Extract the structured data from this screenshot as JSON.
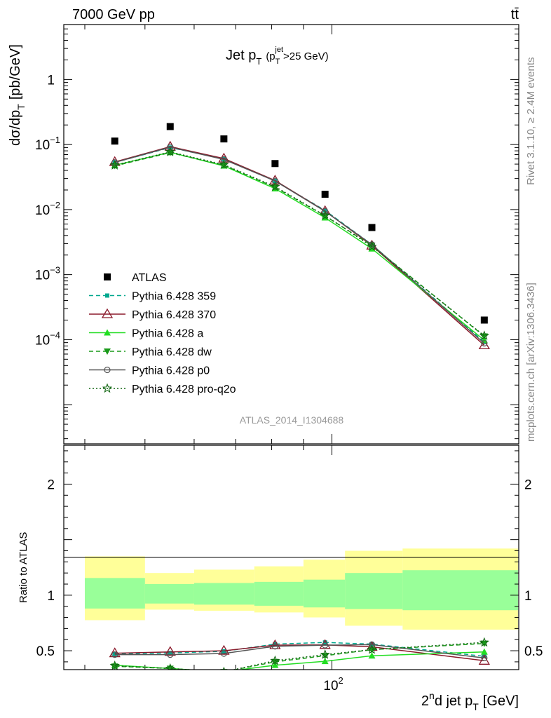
{
  "header": {
    "left": "7000 GeV pp",
    "right": "tt̄"
  },
  "side_labels": {
    "rivet": "Rivet 3.1.10, ≥ 2.4M events",
    "mcplots": "mcplots.cern.ch [arXiv:1306.3436]"
  },
  "analysis_id": "ATLAS_2014_I1304688",
  "chart_data": [
    {
      "type": "line",
      "panel": "main",
      "title": "Jet p_T (p_T^jet > 25 GeV)",
      "title_main": "Jet p",
      "title_sub": "T",
      "title_cut_pre": "(p",
      "title_cut_sub": "T",
      "title_cut_sup": "jet",
      "title_cut_post": ">25 GeV)",
      "ylabel": "dσ/dp_T [pb/GeV]",
      "ylabel_main": "dσ/dp",
      "ylabel_sub": "T",
      "ylabel_unit": "[pb/GeV]",
      "xlabel": "2^nd jet p_T [GeV]",
      "xscale": "log",
      "yscale": "log",
      "xlim": [
        37,
        200
      ],
      "ylim": [
        2.5e-06,
        7
      ],
      "y_tick_labels": [
        {
          "base": "10",
          "exp": "−4",
          "value": 0.0001
        },
        {
          "base": "10",
          "exp": "−3",
          "value": 0.001
        },
        {
          "base": "10",
          "exp": "−2",
          "value": 0.01
        },
        {
          "base": "10",
          "exp": "−1",
          "value": 0.1
        },
        {
          "base": "1",
          "exp": "",
          "value": 1
        }
      ],
      "legend_position": "lower-left",
      "series": [
        {
          "name": "ATLAS",
          "style": "data",
          "color": "#000000",
          "x": [
            44.7,
            54.9,
            67.0,
            81.0,
            97.5,
            116.0,
            176.0
          ],
          "y": [
            0.113,
            0.189,
            0.122,
            0.051,
            0.0172,
            0.0053,
            0.0002
          ]
        },
        {
          "name": "Pythia 6.428 359",
          "style": "dashed",
          "marker": "square",
          "color": "#00a88f",
          "x": [
            44.7,
            54.9,
            67.0,
            81.0,
            97.5,
            116.0,
            176.0
          ],
          "y": [
            0.053,
            0.09,
            0.06,
            0.0275,
            0.0097,
            0.0029,
            9.2e-05
          ]
        },
        {
          "name": "Pythia 6.428 370",
          "style": "solid",
          "marker": "triangle-open",
          "color": "#8b1a2b",
          "x": [
            44.7,
            54.9,
            67.0,
            81.0,
            97.5,
            116.0,
            176.0
          ],
          "y": [
            0.054,
            0.093,
            0.061,
            0.028,
            0.0095,
            0.0028,
            8.2e-05
          ]
        },
        {
          "name": "Pythia 6.428 a",
          "style": "solid",
          "marker": "triangle",
          "color": "#22dd22",
          "x": [
            44.7,
            54.9,
            67.0,
            81.0,
            97.5,
            116.0,
            176.0
          ],
          "y": [
            0.048,
            0.076,
            0.047,
            0.021,
            0.0075,
            0.0025,
            9.8e-05
          ]
        },
        {
          "name": "Pythia 6.428 dw",
          "style": "dashed",
          "marker": "triangle-down",
          "color": "#1a9a1a",
          "x": [
            44.7,
            54.9,
            67.0,
            81.0,
            97.5,
            116.0,
            176.0
          ],
          "y": [
            0.047,
            0.075,
            0.048,
            0.022,
            0.008,
            0.0028,
            0.000113
          ]
        },
        {
          "name": "Pythia 6.428 p0",
          "style": "solid",
          "marker": "circle-open",
          "color": "#555555",
          "x": [
            44.7,
            54.9,
            67.0,
            81.0,
            97.5,
            116.0,
            176.0
          ],
          "y": [
            0.053,
            0.091,
            0.059,
            0.0275,
            0.0094,
            0.0029,
            8.8e-05
          ]
        },
        {
          "name": "Pythia 6.428 pro-q2o",
          "style": "dotted",
          "marker": "star",
          "color": "#116611",
          "x": [
            44.7,
            54.9,
            67.0,
            81.0,
            97.5,
            116.0,
            176.0
          ],
          "y": [
            0.048,
            0.077,
            0.049,
            0.0225,
            0.0081,
            0.0027,
            0.000115
          ]
        }
      ]
    },
    {
      "type": "line",
      "panel": "ratio",
      "ylabel": "Ratio to ATLAS",
      "xlabel": "2^nd jet p_T [GeV]",
      "xlabel_sup": "n",
      "xlabel_pre": "2",
      "xlabel_mid": "d jet p",
      "xlabel_sub": "T",
      "xlabel_unit": "[GeV]",
      "xscale": "log",
      "xlim": [
        37,
        200
      ],
      "ylim": [
        0.33,
        2.35
      ],
      "x_tick_labels": [
        {
          "base": "10",
          "exp": "2",
          "value": 100
        }
      ],
      "y_tick_labels": [
        "0.5",
        "1",
        "2"
      ],
      "bands": {
        "bin_edges": [
          40,
          50,
          60,
          75,
          90,
          105,
          130,
          200
        ],
        "stat_lo": [
          0.88,
          0.925,
          0.915,
          0.905,
          0.89,
          0.875,
          0.865
        ],
        "stat_hi": [
          1.155,
          1.1,
          1.11,
          1.12,
          1.14,
          1.2,
          1.225
        ],
        "total_lo": [
          0.775,
          0.87,
          0.86,
          0.845,
          0.8,
          0.725,
          0.69
        ],
        "total_hi": [
          1.35,
          1.2,
          1.23,
          1.26,
          1.32,
          1.4,
          1.42
        ],
        "stat_color": "#99ff99",
        "total_color": "#ffff99"
      },
      "series": [
        {
          "name": "Pythia 6.428 359",
          "x": [
            44.7,
            54.9,
            67.0,
            81.0,
            97.5,
            116.0,
            176.0
          ],
          "y": [
            0.47,
            0.48,
            0.495,
            0.56,
            0.575,
            0.56,
            0.45
          ]
        },
        {
          "name": "Pythia 6.428 370",
          "x": [
            44.7,
            54.9,
            67.0,
            81.0,
            97.5,
            116.0,
            176.0
          ],
          "y": [
            0.478,
            0.49,
            0.5,
            0.55,
            0.552,
            0.535,
            0.41
          ]
        },
        {
          "name": "Pythia 6.428 a",
          "x": [
            44.7,
            54.9,
            67.0,
            81.0,
            97.5,
            116.0,
            176.0
          ],
          "y": [
            0.37,
            0.34,
            0.31,
            0.37,
            0.405,
            0.455,
            0.49
          ]
        },
        {
          "name": "Pythia 6.428 dw",
          "x": [
            44.7,
            54.9,
            67.0,
            81.0,
            97.5,
            116.0,
            176.0
          ],
          "y": [
            0.36,
            0.34,
            0.31,
            0.4,
            0.455,
            0.51,
            0.565
          ]
        },
        {
          "name": "Pythia 6.428 p0",
          "x": [
            44.7,
            54.9,
            67.0,
            81.0,
            97.5,
            116.0,
            176.0
          ],
          "y": [
            0.465,
            0.465,
            0.475,
            0.54,
            0.55,
            0.555,
            0.435
          ]
        },
        {
          "name": "Pythia 6.428 pro-q2o",
          "x": [
            44.7,
            54.9,
            67.0,
            81.0,
            97.5,
            116.0,
            176.0
          ],
          "y": [
            0.365,
            0.34,
            0.31,
            0.41,
            0.465,
            0.51,
            0.575
          ]
        }
      ]
    }
  ]
}
